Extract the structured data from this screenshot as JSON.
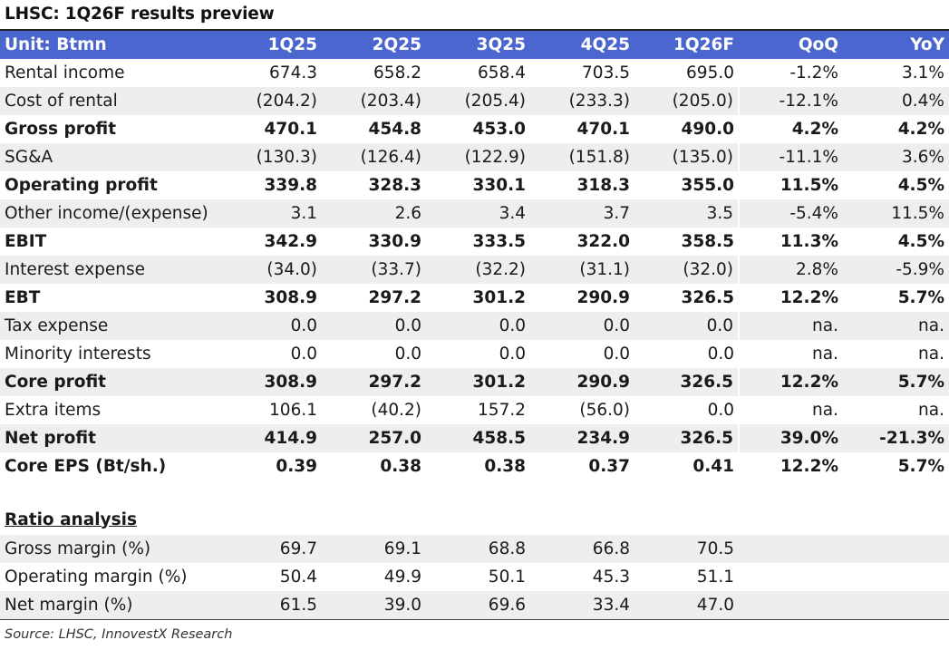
{
  "title": "LHSC: 1Q26F results preview",
  "header": {
    "unit": "Unit: Btmn",
    "cols": [
      "1Q25",
      "2Q25",
      "3Q25",
      "4Q25",
      "1Q26F",
      "QoQ",
      "YoY"
    ]
  },
  "rows": [
    {
      "label": "Rental income",
      "values": [
        "674.3",
        "658.2",
        "658.4",
        "703.5",
        "695.0",
        "-1.2%",
        "3.1%"
      ],
      "bold": false
    },
    {
      "label": "Cost of rental",
      "values": [
        "(204.2)",
        "(203.4)",
        "(205.4)",
        "(233.3)",
        "(205.0)",
        "-12.1%",
        "0.4%"
      ],
      "bold": false
    },
    {
      "label": "Gross profit",
      "values": [
        "470.1",
        "454.8",
        "453.0",
        "470.1",
        "490.0",
        "4.2%",
        "4.2%"
      ],
      "bold": true
    },
    {
      "label": "SG&A",
      "values": [
        "(130.3)",
        "(126.4)",
        "(122.9)",
        "(151.8)",
        "(135.0)",
        "-11.1%",
        "3.6%"
      ],
      "bold": false
    },
    {
      "label": "Operating profit",
      "values": [
        "339.8",
        "328.3",
        "330.1",
        "318.3",
        "355.0",
        "11.5%",
        "4.5%"
      ],
      "bold": true
    },
    {
      "label": "Other income/(expense)",
      "values": [
        "3.1",
        "2.6",
        "3.4",
        "3.7",
        "3.5",
        "-5.4%",
        "11.5%"
      ],
      "bold": false
    },
    {
      "label": "EBIT",
      "values": [
        "342.9",
        "330.9",
        "333.5",
        "322.0",
        "358.5",
        "11.3%",
        "4.5%"
      ],
      "bold": true
    },
    {
      "label": "Interest expense",
      "values": [
        "(34.0)",
        "(33.7)",
        "(32.2)",
        "(31.1)",
        "(32.0)",
        "2.8%",
        "-5.9%"
      ],
      "bold": false
    },
    {
      "label": "EBT",
      "values": [
        "308.9",
        "297.2",
        "301.2",
        "290.9",
        "326.5",
        "12.2%",
        "5.7%"
      ],
      "bold": true
    },
    {
      "label": "Tax expense",
      "values": [
        "0.0",
        "0.0",
        "0.0",
        "0.0",
        "0.0",
        "na.",
        "na."
      ],
      "bold": false
    },
    {
      "label": "Minority interests",
      "values": [
        "0.0",
        "0.0",
        "0.0",
        "0.0",
        "0.0",
        "na.",
        "na."
      ],
      "bold": false
    },
    {
      "label": "Core profit",
      "values": [
        "308.9",
        "297.2",
        "301.2",
        "290.9",
        "326.5",
        "12.2%",
        "5.7%"
      ],
      "bold": true
    },
    {
      "label": "Extra items",
      "values": [
        "106.1",
        "(40.2)",
        "157.2",
        "(56.0)",
        "0.0",
        "na.",
        "na."
      ],
      "bold": false
    },
    {
      "label": "Net profit",
      "values": [
        "414.9",
        "257.0",
        "458.5",
        "234.9",
        "326.5",
        "39.0%",
        "-21.3%"
      ],
      "bold": true
    },
    {
      "label": "Core EPS (Bt/sh.)",
      "values": [
        "0.39",
        "0.38",
        "0.38",
        "0.37",
        "0.41",
        "12.2%",
        "5.7%"
      ],
      "bold": true
    }
  ],
  "ratio_title": "Ratio analysis",
  "ratios": [
    {
      "label": "Gross margin (%)",
      "values": [
        "69.7",
        "69.1",
        "68.8",
        "66.8",
        "70.5"
      ]
    },
    {
      "label": "Operating margin (%)",
      "values": [
        "50.4",
        "49.9",
        "50.1",
        "45.3",
        "51.1"
      ]
    },
    {
      "label": "Net margin (%)",
      "values": [
        "61.5",
        "39.0",
        "69.6",
        "33.4",
        "47.0"
      ]
    }
  ],
  "source": "Source: LHSC, InnovestX Research",
  "colors": {
    "header_bg": "#4b67cf",
    "shade": "#eeeeee"
  }
}
